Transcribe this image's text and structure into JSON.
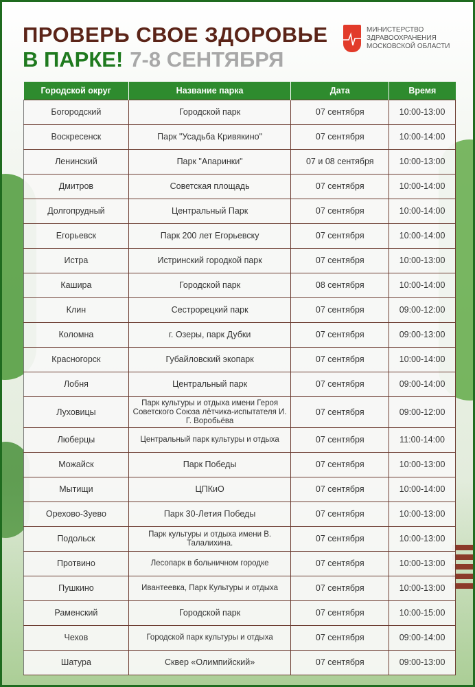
{
  "header": {
    "title_line1": "ПРОВЕРЬ СВОЕ ЗДОРОВЬЕ",
    "title_line2": "В ПАРКЕ!",
    "dates": "7-8 СЕНТЯБРЯ"
  },
  "logo": {
    "line1": "МИНИСТЕРСТВО",
    "line2": "ЗДРАВООХРАНЕНИЯ",
    "line3": "МОСКОВСКОЙ ОБЛАСТИ"
  },
  "colors": {
    "frame": "#1f6b1f",
    "title_brown": "#5b2418",
    "title_green": "#1f7a1f",
    "header_green": "#2e8b2e",
    "logo_red": "#e23b2a"
  },
  "table": {
    "columns": [
      "Городской округ",
      "Название  парка",
      "Дата",
      "Время"
    ],
    "rows": [
      [
        "Богородский",
        "Городской  парк",
        "07 сентября",
        "10:00-13:00"
      ],
      [
        "Воскресенск",
        "Парк \"Усадьба Кривякино\"",
        "07 сентября",
        "10:00-14:00"
      ],
      [
        "Ленинский",
        "Парк \"Апаринки\"",
        "07 и 08 сентября",
        "10:00-13:00"
      ],
      [
        "Дмитров",
        "Советская площадь",
        "07 сентября",
        "10:00-14:00"
      ],
      [
        "Долгопрудный",
        "Центральный  Парк",
        "07 сентября",
        "10:00-14:00"
      ],
      [
        "Егорьевск",
        "Парк 200 лет Егорьевску",
        "07 сентября",
        "10:00-14:00"
      ],
      [
        "Истра",
        "Истринский городкой парк",
        "07 сентября",
        "10:00-13:00"
      ],
      [
        "Кашира",
        "Городской  парк",
        "08 сентября",
        "10:00-14:00"
      ],
      [
        "Клин",
        "Сестрорецкий  парк",
        "07 сентября",
        "09:00-12:00"
      ],
      [
        "Коломна",
        "г. Озеры, парк Дубки",
        "07 сентября",
        "09:00-13:00"
      ],
      [
        "Красногорск",
        "Губайловский  экопарк",
        "07 сентября",
        "10:00-14:00"
      ],
      [
        "Лобня",
        "Центральный  парк",
        "07 сентября",
        "09:00-14:00"
      ],
      [
        "Луховицы",
        "Парк культуры и отдыха имени Героя Советского Союза лётчика-испытателя  И. Г. Воробьёва",
        "07 сентября",
        "09:00-12:00"
      ],
      [
        "Люберцы",
        "Центральный  парк культуры и отдыха",
        "07 сентября",
        "11:00-14:00"
      ],
      [
        "Можайск",
        "Парк Победы",
        "07 сентября",
        "10:00-13:00"
      ],
      [
        "Мытищи",
        "ЦПКиО",
        "07 сентября",
        "10:00-14:00"
      ],
      [
        "Орехово-Зуево",
        "Парк 30-Летия  Победы",
        "07 сентября",
        "10:00-13:00"
      ],
      [
        "Подольск",
        "Парк культуры и отдыха имени  В. Талалихина.",
        "07 сентября",
        "10:00-13:00"
      ],
      [
        "Протвино",
        "Лесопарк  в больничном  городке",
        "07 сентября",
        "10:00-13:00"
      ],
      [
        "Пушкино",
        "Ивантеевка, Парк Культуры и отдыха",
        "07 сентября",
        "10:00-13:00"
      ],
      [
        "Раменский",
        "Городской  парк",
        "07 сентября",
        "10:00-15:00"
      ],
      [
        "Чехов",
        "Городской парк культуры и отдыха",
        "07 сентября",
        "09:00-14:00"
      ],
      [
        "Шатура",
        "Сквер «Олимпийский»",
        "07 сентября",
        "09:00-13:00"
      ]
    ]
  }
}
